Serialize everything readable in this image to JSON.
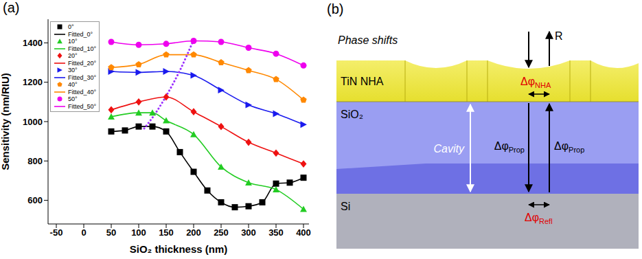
{
  "chart_data": {
    "type": "scatter",
    "label": "(a)",
    "x_label": "SiO₂ thickness (nm)",
    "y_label": "Sensitivity (nm/RIU)",
    "xlim": [
      -65,
      410
    ],
    "xticks": [
      -50,
      0,
      50,
      100,
      150,
      200,
      250,
      300,
      350,
      400
    ],
    "ylim": [
      480,
      1520
    ],
    "yticks": [
      600,
      800,
      1000,
      1200,
      1400
    ],
    "legend": "top-left",
    "series": [
      {
        "name": "0°",
        "type": "scatter",
        "marker": "square",
        "color": "#000000",
        "x": [
          50,
          75,
          100,
          125,
          150,
          175,
          200,
          225,
          250,
          275,
          300,
          325,
          350,
          375,
          400
        ],
        "values": [
          950,
          955,
          975,
          975,
          950,
          845,
          745,
          650,
          590,
          565,
          570,
          590,
          685,
          690,
          715
        ]
      },
      {
        "name": "Fitted_0°",
        "type": "line",
        "line_style": "solid",
        "color": "#000000",
        "x": [
          50,
          75,
          100,
          125,
          150,
          175,
          200,
          225,
          250,
          275,
          300,
          325,
          350,
          375,
          400
        ],
        "values": [
          950,
          955,
          975,
          975,
          950,
          845,
          745,
          650,
          590,
          565,
          570,
          590,
          685,
          690,
          715
        ]
      },
      {
        "name": "10°",
        "type": "scatter",
        "marker": "triangle",
        "color": "#22cc22",
        "x": [
          50,
          100,
          125,
          150,
          200,
          250,
          300,
          350,
          400
        ],
        "values": [
          1025,
          1045,
          1045,
          1005,
          935,
          770,
          690,
          655,
          555
        ]
      },
      {
        "name": "Fitted_10°",
        "type": "line",
        "line_style": "solid",
        "color": "#22cc22",
        "x": [
          50,
          100,
          125,
          150,
          200,
          250,
          300,
          350,
          400
        ],
        "values": [
          1025,
          1045,
          1045,
          1005,
          935,
          770,
          690,
          655,
          555
        ]
      },
      {
        "name": "20°",
        "type": "scatter",
        "marker": "diamond",
        "color": "#ee1111",
        "x": [
          50,
          100,
          150,
          200,
          250,
          300,
          350,
          400
        ],
        "values": [
          1060,
          1100,
          1125,
          1050,
          975,
          895,
          840,
          785
        ]
      },
      {
        "name": "Fitted_20°",
        "type": "line",
        "line_style": "solid",
        "color": "#ee1111",
        "x": [
          50,
          100,
          150,
          200,
          250,
          300,
          350,
          400
        ],
        "values": [
          1060,
          1100,
          1125,
          1050,
          975,
          895,
          840,
          785
        ]
      },
      {
        "name": "30°",
        "type": "scatter",
        "marker": "triangle-right",
        "color": "#1a1aee",
        "x": [
          50,
          100,
          150,
          200,
          250,
          300,
          350,
          400
        ],
        "values": [
          1255,
          1250,
          1255,
          1235,
          1160,
          1085,
          1040,
          985
        ]
      },
      {
        "name": "Fitted_30°",
        "type": "line",
        "line_style": "solid",
        "color": "#1a1aee",
        "x": [
          50,
          100,
          150,
          200,
          250,
          300,
          350,
          400
        ],
        "values": [
          1255,
          1250,
          1255,
          1235,
          1160,
          1085,
          1040,
          985
        ]
      },
      {
        "name": "40°",
        "type": "scatter",
        "marker": "pentagon",
        "color": "#ff8800",
        "x": [
          50,
          100,
          150,
          200,
          250,
          300,
          350,
          400
        ],
        "values": [
          1275,
          1290,
          1340,
          1340,
          1300,
          1260,
          1215,
          1110
        ]
      },
      {
        "name": "Fitted_40°",
        "type": "line",
        "line_style": "solid",
        "color": "#ff8800",
        "x": [
          50,
          100,
          150,
          200,
          250,
          300,
          350,
          400
        ],
        "values": [
          1275,
          1290,
          1340,
          1340,
          1300,
          1260,
          1215,
          1110
        ]
      },
      {
        "name": "50°",
        "type": "scatter",
        "marker": "circle",
        "color": "#ee00ee",
        "x": [
          50,
          100,
          150,
          200,
          250,
          300,
          350,
          400
        ],
        "values": [
          1405,
          1390,
          1395,
          1410,
          1405,
          1375,
          1345,
          1285
        ]
      },
      {
        "name": "Fitted_50°",
        "type": "line",
        "line_style": "solid",
        "color": "#ee00ee",
        "x": [
          50,
          100,
          150,
          200,
          250,
          300,
          350,
          400
        ],
        "values": [
          1405,
          1390,
          1395,
          1410,
          1405,
          1375,
          1345,
          1285
        ]
      },
      {
        "type": "line",
        "line_style": "dotted",
        "color": "#9b30ff",
        "x": [
          110,
          130,
          150,
          175,
          200
        ],
        "values": [
          965,
          1040,
          1130,
          1260,
          1415
        ]
      }
    ]
  },
  "diagram": {
    "label": "(b)",
    "title": "Phase shifts",
    "layers": [
      {
        "name": "TiN NHA",
        "color": "#e6df2e"
      },
      {
        "name": "SiO₂",
        "color": "#9a9ef2"
      },
      {
        "name": "Si",
        "color": "#b0b1bc"
      }
    ],
    "cavity": "Cavity",
    "reflection": "R",
    "phase_shifts": [
      {
        "symbol": "Δφ",
        "sub": "NHA",
        "color": "#e00000"
      },
      {
        "symbol": "Δφ",
        "sub": "Prop",
        "color": "#000000"
      },
      {
        "symbol": "Δφ",
        "sub": "Prop",
        "color": "#000000"
      },
      {
        "symbol": "Δφ",
        "sub": "Refl",
        "color": "#e00000"
      }
    ]
  }
}
